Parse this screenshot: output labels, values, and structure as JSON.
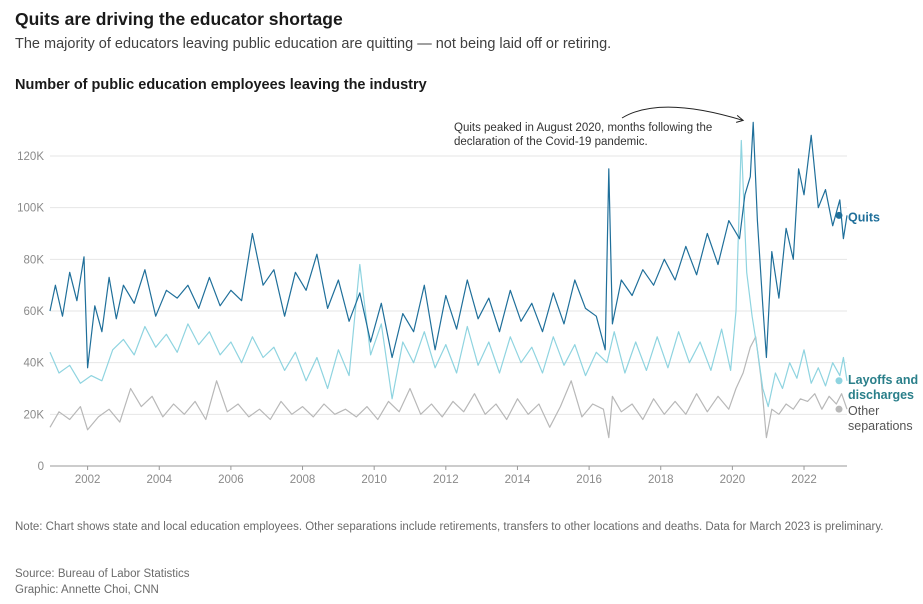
{
  "header": {
    "title": "Quits are driving the educator shortage",
    "subtitle": "The majority of educators leaving public education are quitting — not being laid off or retiring.",
    "chart_heading": "Number of public education employees leaving the industry"
  },
  "footer": {
    "note": "Note: Chart shows state and local education employees. Other separations include retirements, transfers to other locations and deaths. Data for March 2023 is preliminary.",
    "source": "Source: Bureau of Labor Statistics",
    "credit": "Graphic: Annette Choi, CNN"
  },
  "chart_data": {
    "type": "line",
    "title": "Number of public education employees leaving the industry",
    "xlabel": "",
    "ylabel": "",
    "xlim": [
      2000.95,
      2023.2
    ],
    "ylim": [
      0,
      130000
    ],
    "y_ticks": [
      0,
      20000,
      40000,
      60000,
      80000,
      100000,
      120000
    ],
    "y_tick_labels": [
      "0",
      "20K",
      "40K",
      "60K",
      "80K",
      "100K",
      "120K"
    ],
    "x_ticks": [
      2002,
      2004,
      2006,
      2008,
      2010,
      2012,
      2014,
      2016,
      2018,
      2020,
      2022
    ],
    "x_tick_labels": [
      "2002",
      "2004",
      "2006",
      "2008",
      "2010",
      "2012",
      "2014",
      "2016",
      "2018",
      "2020",
      "2022"
    ],
    "grid": true,
    "legend": "direct labels at right end of each series",
    "annotation": {
      "text_lines": [
        "Quits peaked in August 2020, months following the",
        "declaration of the Covid-19 pandemic."
      ],
      "points_to": {
        "x": 2020.58,
        "y": 133000
      }
    },
    "series": [
      {
        "name": "Quits",
        "label_lines": [
          "Quits"
        ],
        "color": "#1f6f9a",
        "label_color": "#1f6f9a",
        "points": [
          [
            2000.95,
            60000
          ],
          [
            2001.1,
            70000
          ],
          [
            2001.3,
            58000
          ],
          [
            2001.5,
            75000
          ],
          [
            2001.7,
            64000
          ],
          [
            2001.9,
            81000
          ],
          [
            2002.0,
            38000
          ],
          [
            2002.2,
            62000
          ],
          [
            2002.4,
            52000
          ],
          [
            2002.6,
            73000
          ],
          [
            2002.8,
            57000
          ],
          [
            2003.0,
            70000
          ],
          [
            2003.3,
            63000
          ],
          [
            2003.6,
            76000
          ],
          [
            2003.9,
            58000
          ],
          [
            2004.2,
            68000
          ],
          [
            2004.5,
            65000
          ],
          [
            2004.8,
            70000
          ],
          [
            2005.1,
            61000
          ],
          [
            2005.4,
            73000
          ],
          [
            2005.7,
            62000
          ],
          [
            2006.0,
            68000
          ],
          [
            2006.3,
            64000
          ],
          [
            2006.6,
            90000
          ],
          [
            2006.9,
            70000
          ],
          [
            2007.2,
            76000
          ],
          [
            2007.5,
            58000
          ],
          [
            2007.8,
            75000
          ],
          [
            2008.1,
            68000
          ],
          [
            2008.4,
            82000
          ],
          [
            2008.7,
            61000
          ],
          [
            2009.0,
            72000
          ],
          [
            2009.3,
            56000
          ],
          [
            2009.6,
            67000
          ],
          [
            2009.9,
            48000
          ],
          [
            2010.2,
            63000
          ],
          [
            2010.5,
            42000
          ],
          [
            2010.8,
            59000
          ],
          [
            2011.1,
            52000
          ],
          [
            2011.4,
            70000
          ],
          [
            2011.7,
            45000
          ],
          [
            2012.0,
            66000
          ],
          [
            2012.3,
            53000
          ],
          [
            2012.6,
            72000
          ],
          [
            2012.9,
            57000
          ],
          [
            2013.2,
            65000
          ],
          [
            2013.5,
            52000
          ],
          [
            2013.8,
            68000
          ],
          [
            2014.1,
            56000
          ],
          [
            2014.4,
            63000
          ],
          [
            2014.7,
            52000
          ],
          [
            2015.0,
            67000
          ],
          [
            2015.3,
            55000
          ],
          [
            2015.6,
            72000
          ],
          [
            2015.9,
            61000
          ],
          [
            2016.2,
            58000
          ],
          [
            2016.45,
            45000
          ],
          [
            2016.55,
            115000
          ],
          [
            2016.65,
            55000
          ],
          [
            2016.9,
            72000
          ],
          [
            2017.2,
            66000
          ],
          [
            2017.5,
            76000
          ],
          [
            2017.8,
            70000
          ],
          [
            2018.1,
            80000
          ],
          [
            2018.4,
            72000
          ],
          [
            2018.7,
            85000
          ],
          [
            2019.0,
            74000
          ],
          [
            2019.3,
            90000
          ],
          [
            2019.6,
            78000
          ],
          [
            2019.9,
            95000
          ],
          [
            2020.2,
            88000
          ],
          [
            2020.35,
            105000
          ],
          [
            2020.5,
            112000
          ],
          [
            2020.58,
            133000
          ],
          [
            2020.7,
            95000
          ],
          [
            2020.85,
            62000
          ],
          [
            2020.95,
            42000
          ],
          [
            2021.1,
            83000
          ],
          [
            2021.3,
            65000
          ],
          [
            2021.5,
            92000
          ],
          [
            2021.7,
            80000
          ],
          [
            2021.85,
            115000
          ],
          [
            2022.0,
            105000
          ],
          [
            2022.2,
            128000
          ],
          [
            2022.4,
            100000
          ],
          [
            2022.6,
            107000
          ],
          [
            2022.8,
            93000
          ],
          [
            2023.0,
            103000
          ],
          [
            2023.1,
            88000
          ],
          [
            2023.2,
            97000
          ]
        ]
      },
      {
        "name": "Layoffs and discharges",
        "label_lines": [
          "Layoffs and",
          "discharges"
        ],
        "color": "#8fd4e0",
        "label_color": "#2a7f8a",
        "points": [
          [
            2000.95,
            44000
          ],
          [
            2001.2,
            36000
          ],
          [
            2001.5,
            39000
          ],
          [
            2001.8,
            32000
          ],
          [
            2002.1,
            35000
          ],
          [
            2002.4,
            33000
          ],
          [
            2002.7,
            45000
          ],
          [
            2003.0,
            49000
          ],
          [
            2003.3,
            43000
          ],
          [
            2003.6,
            54000
          ],
          [
            2003.9,
            46000
          ],
          [
            2004.2,
            51000
          ],
          [
            2004.5,
            44000
          ],
          [
            2004.8,
            55000
          ],
          [
            2005.1,
            47000
          ],
          [
            2005.4,
            52000
          ],
          [
            2005.7,
            43000
          ],
          [
            2006.0,
            48000
          ],
          [
            2006.3,
            40000
          ],
          [
            2006.6,
            50000
          ],
          [
            2006.9,
            42000
          ],
          [
            2007.2,
            46000
          ],
          [
            2007.5,
            37000
          ],
          [
            2007.8,
            44000
          ],
          [
            2008.1,
            33000
          ],
          [
            2008.4,
            42000
          ],
          [
            2008.7,
            30000
          ],
          [
            2009.0,
            45000
          ],
          [
            2009.3,
            35000
          ],
          [
            2009.6,
            78000
          ],
          [
            2009.9,
            43000
          ],
          [
            2010.2,
            55000
          ],
          [
            2010.5,
            26000
          ],
          [
            2010.8,
            48000
          ],
          [
            2011.1,
            40000
          ],
          [
            2011.4,
            52000
          ],
          [
            2011.7,
            38000
          ],
          [
            2012.0,
            47000
          ],
          [
            2012.3,
            36000
          ],
          [
            2012.6,
            54000
          ],
          [
            2012.9,
            39000
          ],
          [
            2013.2,
            48000
          ],
          [
            2013.5,
            36000
          ],
          [
            2013.8,
            50000
          ],
          [
            2014.1,
            40000
          ],
          [
            2014.4,
            46000
          ],
          [
            2014.7,
            36000
          ],
          [
            2015.0,
            50000
          ],
          [
            2015.3,
            39000
          ],
          [
            2015.6,
            47000
          ],
          [
            2015.9,
            35000
          ],
          [
            2016.2,
            44000
          ],
          [
            2016.5,
            40000
          ],
          [
            2016.7,
            52000
          ],
          [
            2017.0,
            36000
          ],
          [
            2017.3,
            48000
          ],
          [
            2017.6,
            37000
          ],
          [
            2017.9,
            50000
          ],
          [
            2018.2,
            38000
          ],
          [
            2018.5,
            52000
          ],
          [
            2018.8,
            40000
          ],
          [
            2019.1,
            48000
          ],
          [
            2019.4,
            37000
          ],
          [
            2019.7,
            53000
          ],
          [
            2019.95,
            37000
          ],
          [
            2020.1,
            60000
          ],
          [
            2020.25,
            126000
          ],
          [
            2020.4,
            75000
          ],
          [
            2020.55,
            58000
          ],
          [
            2020.7,
            45000
          ],
          [
            2020.85,
            30000
          ],
          [
            2021.0,
            23000
          ],
          [
            2021.2,
            36000
          ],
          [
            2021.4,
            30000
          ],
          [
            2021.6,
            40000
          ],
          [
            2021.8,
            34000
          ],
          [
            2022.0,
            45000
          ],
          [
            2022.2,
            32000
          ],
          [
            2022.4,
            38000
          ],
          [
            2022.6,
            31000
          ],
          [
            2022.8,
            40000
          ],
          [
            2023.0,
            35000
          ],
          [
            2023.1,
            42000
          ],
          [
            2023.2,
            33000
          ]
        ]
      },
      {
        "name": "Other separations",
        "label_lines": [
          "Other",
          "separations"
        ],
        "color": "#b8b8b8",
        "label_color": "#555555",
        "points": [
          [
            2000.95,
            15000
          ],
          [
            2001.2,
            21000
          ],
          [
            2001.5,
            18000
          ],
          [
            2001.8,
            23000
          ],
          [
            2002.0,
            14000
          ],
          [
            2002.3,
            19000
          ],
          [
            2002.6,
            22000
          ],
          [
            2002.9,
            17000
          ],
          [
            2003.2,
            30000
          ],
          [
            2003.5,
            23000
          ],
          [
            2003.8,
            27000
          ],
          [
            2004.1,
            19000
          ],
          [
            2004.4,
            24000
          ],
          [
            2004.7,
            20000
          ],
          [
            2005.0,
            25000
          ],
          [
            2005.3,
            18000
          ],
          [
            2005.6,
            33000
          ],
          [
            2005.9,
            21000
          ],
          [
            2006.2,
            24000
          ],
          [
            2006.5,
            19000
          ],
          [
            2006.8,
            22000
          ],
          [
            2007.1,
            18000
          ],
          [
            2007.4,
            25000
          ],
          [
            2007.7,
            20000
          ],
          [
            2008.0,
            23000
          ],
          [
            2008.3,
            19000
          ],
          [
            2008.6,
            24000
          ],
          [
            2008.9,
            20000
          ],
          [
            2009.2,
            22000
          ],
          [
            2009.5,
            19000
          ],
          [
            2009.8,
            23000
          ],
          [
            2010.1,
            18000
          ],
          [
            2010.4,
            25000
          ],
          [
            2010.7,
            21000
          ],
          [
            2011.0,
            30000
          ],
          [
            2011.3,
            20000
          ],
          [
            2011.6,
            24000
          ],
          [
            2011.9,
            19000
          ],
          [
            2012.2,
            25000
          ],
          [
            2012.5,
            21000
          ],
          [
            2012.8,
            28000
          ],
          [
            2013.1,
            20000
          ],
          [
            2013.4,
            24000
          ],
          [
            2013.7,
            18000
          ],
          [
            2014.0,
            26000
          ],
          [
            2014.3,
            20000
          ],
          [
            2014.6,
            24000
          ],
          [
            2014.9,
            15000
          ],
          [
            2015.2,
            23000
          ],
          [
            2015.5,
            33000
          ],
          [
            2015.8,
            19000
          ],
          [
            2016.1,
            24000
          ],
          [
            2016.4,
            22000
          ],
          [
            2016.55,
            11000
          ],
          [
            2016.65,
            27000
          ],
          [
            2016.9,
            21000
          ],
          [
            2017.2,
            24000
          ],
          [
            2017.5,
            18000
          ],
          [
            2017.8,
            26000
          ],
          [
            2018.1,
            20000
          ],
          [
            2018.4,
            25000
          ],
          [
            2018.7,
            20000
          ],
          [
            2019.0,
            28000
          ],
          [
            2019.3,
            21000
          ],
          [
            2019.6,
            27000
          ],
          [
            2019.9,
            22000
          ],
          [
            2020.1,
            30000
          ],
          [
            2020.3,
            36000
          ],
          [
            2020.5,
            46000
          ],
          [
            2020.65,
            50000
          ],
          [
            2020.8,
            34000
          ],
          [
            2020.95,
            11000
          ],
          [
            2021.1,
            22000
          ],
          [
            2021.3,
            20000
          ],
          [
            2021.5,
            24000
          ],
          [
            2021.7,
            22000
          ],
          [
            2021.9,
            26000
          ],
          [
            2022.1,
            25000
          ],
          [
            2022.3,
            28000
          ],
          [
            2022.5,
            22000
          ],
          [
            2022.7,
            27000
          ],
          [
            2022.9,
            24000
          ],
          [
            2023.05,
            28000
          ],
          [
            2023.2,
            22000
          ]
        ]
      }
    ]
  },
  "colors": {
    "quits": "#1f6f9a",
    "layoffs": "#8fd4e0",
    "other": "#b8b8b8",
    "grid": "#e6e6e6",
    "axis": "#999999",
    "tick_text": "#8a8a8a"
  }
}
